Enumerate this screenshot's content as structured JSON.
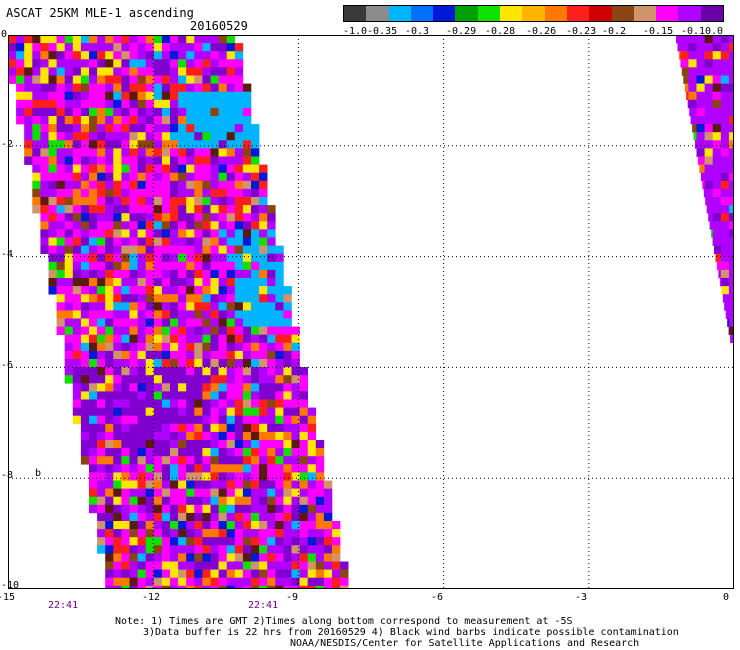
{
  "header": {
    "title": "ASCAT 25KM MLE-1 ascending",
    "date": "20160529"
  },
  "colorbar": {
    "colors": [
      "#3a3a3a",
      "#8c8c8c",
      "#00b4ff",
      "#0070ff",
      "#0018d8",
      "#00a000",
      "#10e000",
      "#ffe600",
      "#ffb400",
      "#ff7800",
      "#ff1e1e",
      "#d00000",
      "#8b4513",
      "#d0946a",
      "#ff00ff",
      "#b000ff",
      "#6a00a8"
    ],
    "labels": [
      "-1.0",
      "-0.35",
      "-0.3",
      "-0.29",
      "-0.28",
      "-0.26",
      "-0.23",
      "-0.2",
      "-0.15",
      "-0.1",
      "0.0"
    ]
  },
  "axes": {
    "x_ticks": [
      "-15",
      "-12",
      "-9",
      "-6",
      "-3",
      "0"
    ],
    "y_ticks": [
      "0",
      "-2",
      "-4",
      "-6",
      "-8",
      "-10"
    ],
    "xlim": [
      -15,
      0
    ],
    "ylim": [
      -10,
      0
    ],
    "minor_label": "b"
  },
  "times": [
    "22:41",
    "22:41"
  ],
  "notes": {
    "line1": "Note: 1) Times are GMT 2)Times along bottom correspond to measurement at -5S",
    "line2": "3)Data buffer is 22 hrs from 20160529 4) Black wind barbs indicate possible contamination",
    "line3": "NOAA/NESDIS/Center for Satellite Applications and Research"
  },
  "swaths": {
    "palette": [
      "#ff00ff",
      "#b000ff",
      "#8000d0",
      "#ff1e1e",
      "#ffe600",
      "#ff7800",
      "#00b4ff",
      "#0018d8",
      "#10e000",
      "#8b4513",
      "#d0946a",
      "#5a1a10"
    ],
    "weights": [
      7,
      6,
      4,
      3,
      2,
      2,
      1,
      1,
      1,
      1,
      1,
      1
    ]
  }
}
